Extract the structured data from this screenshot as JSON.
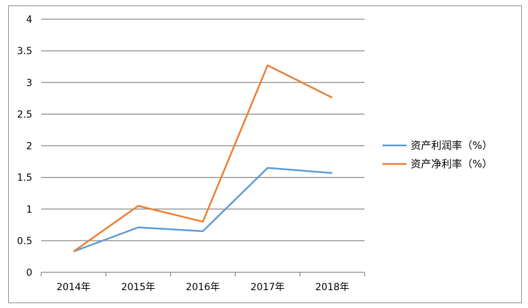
{
  "chart_data": {
    "type": "line",
    "title": "",
    "xlabel": "",
    "ylabel": "",
    "categories": [
      "2014年",
      "2015年",
      "2016年",
      "2017年",
      "2018年"
    ],
    "ylim": [
      0,
      4
    ],
    "yticks": [
      "0",
      "0.5",
      "1",
      "1.5",
      "2",
      "2.5",
      "3",
      "3.5",
      "4"
    ],
    "grid": true,
    "legend_position": "right",
    "series": [
      {
        "name": "资产利润率（%）",
        "color": "#5b9bd5",
        "values": [
          0.33,
          0.71,
          0.65,
          1.65,
          1.57
        ]
      },
      {
        "name": "资产净利率（%）",
        "color": "#ed7d31",
        "values": [
          0.33,
          1.05,
          0.8,
          3.27,
          2.76
        ]
      }
    ]
  }
}
